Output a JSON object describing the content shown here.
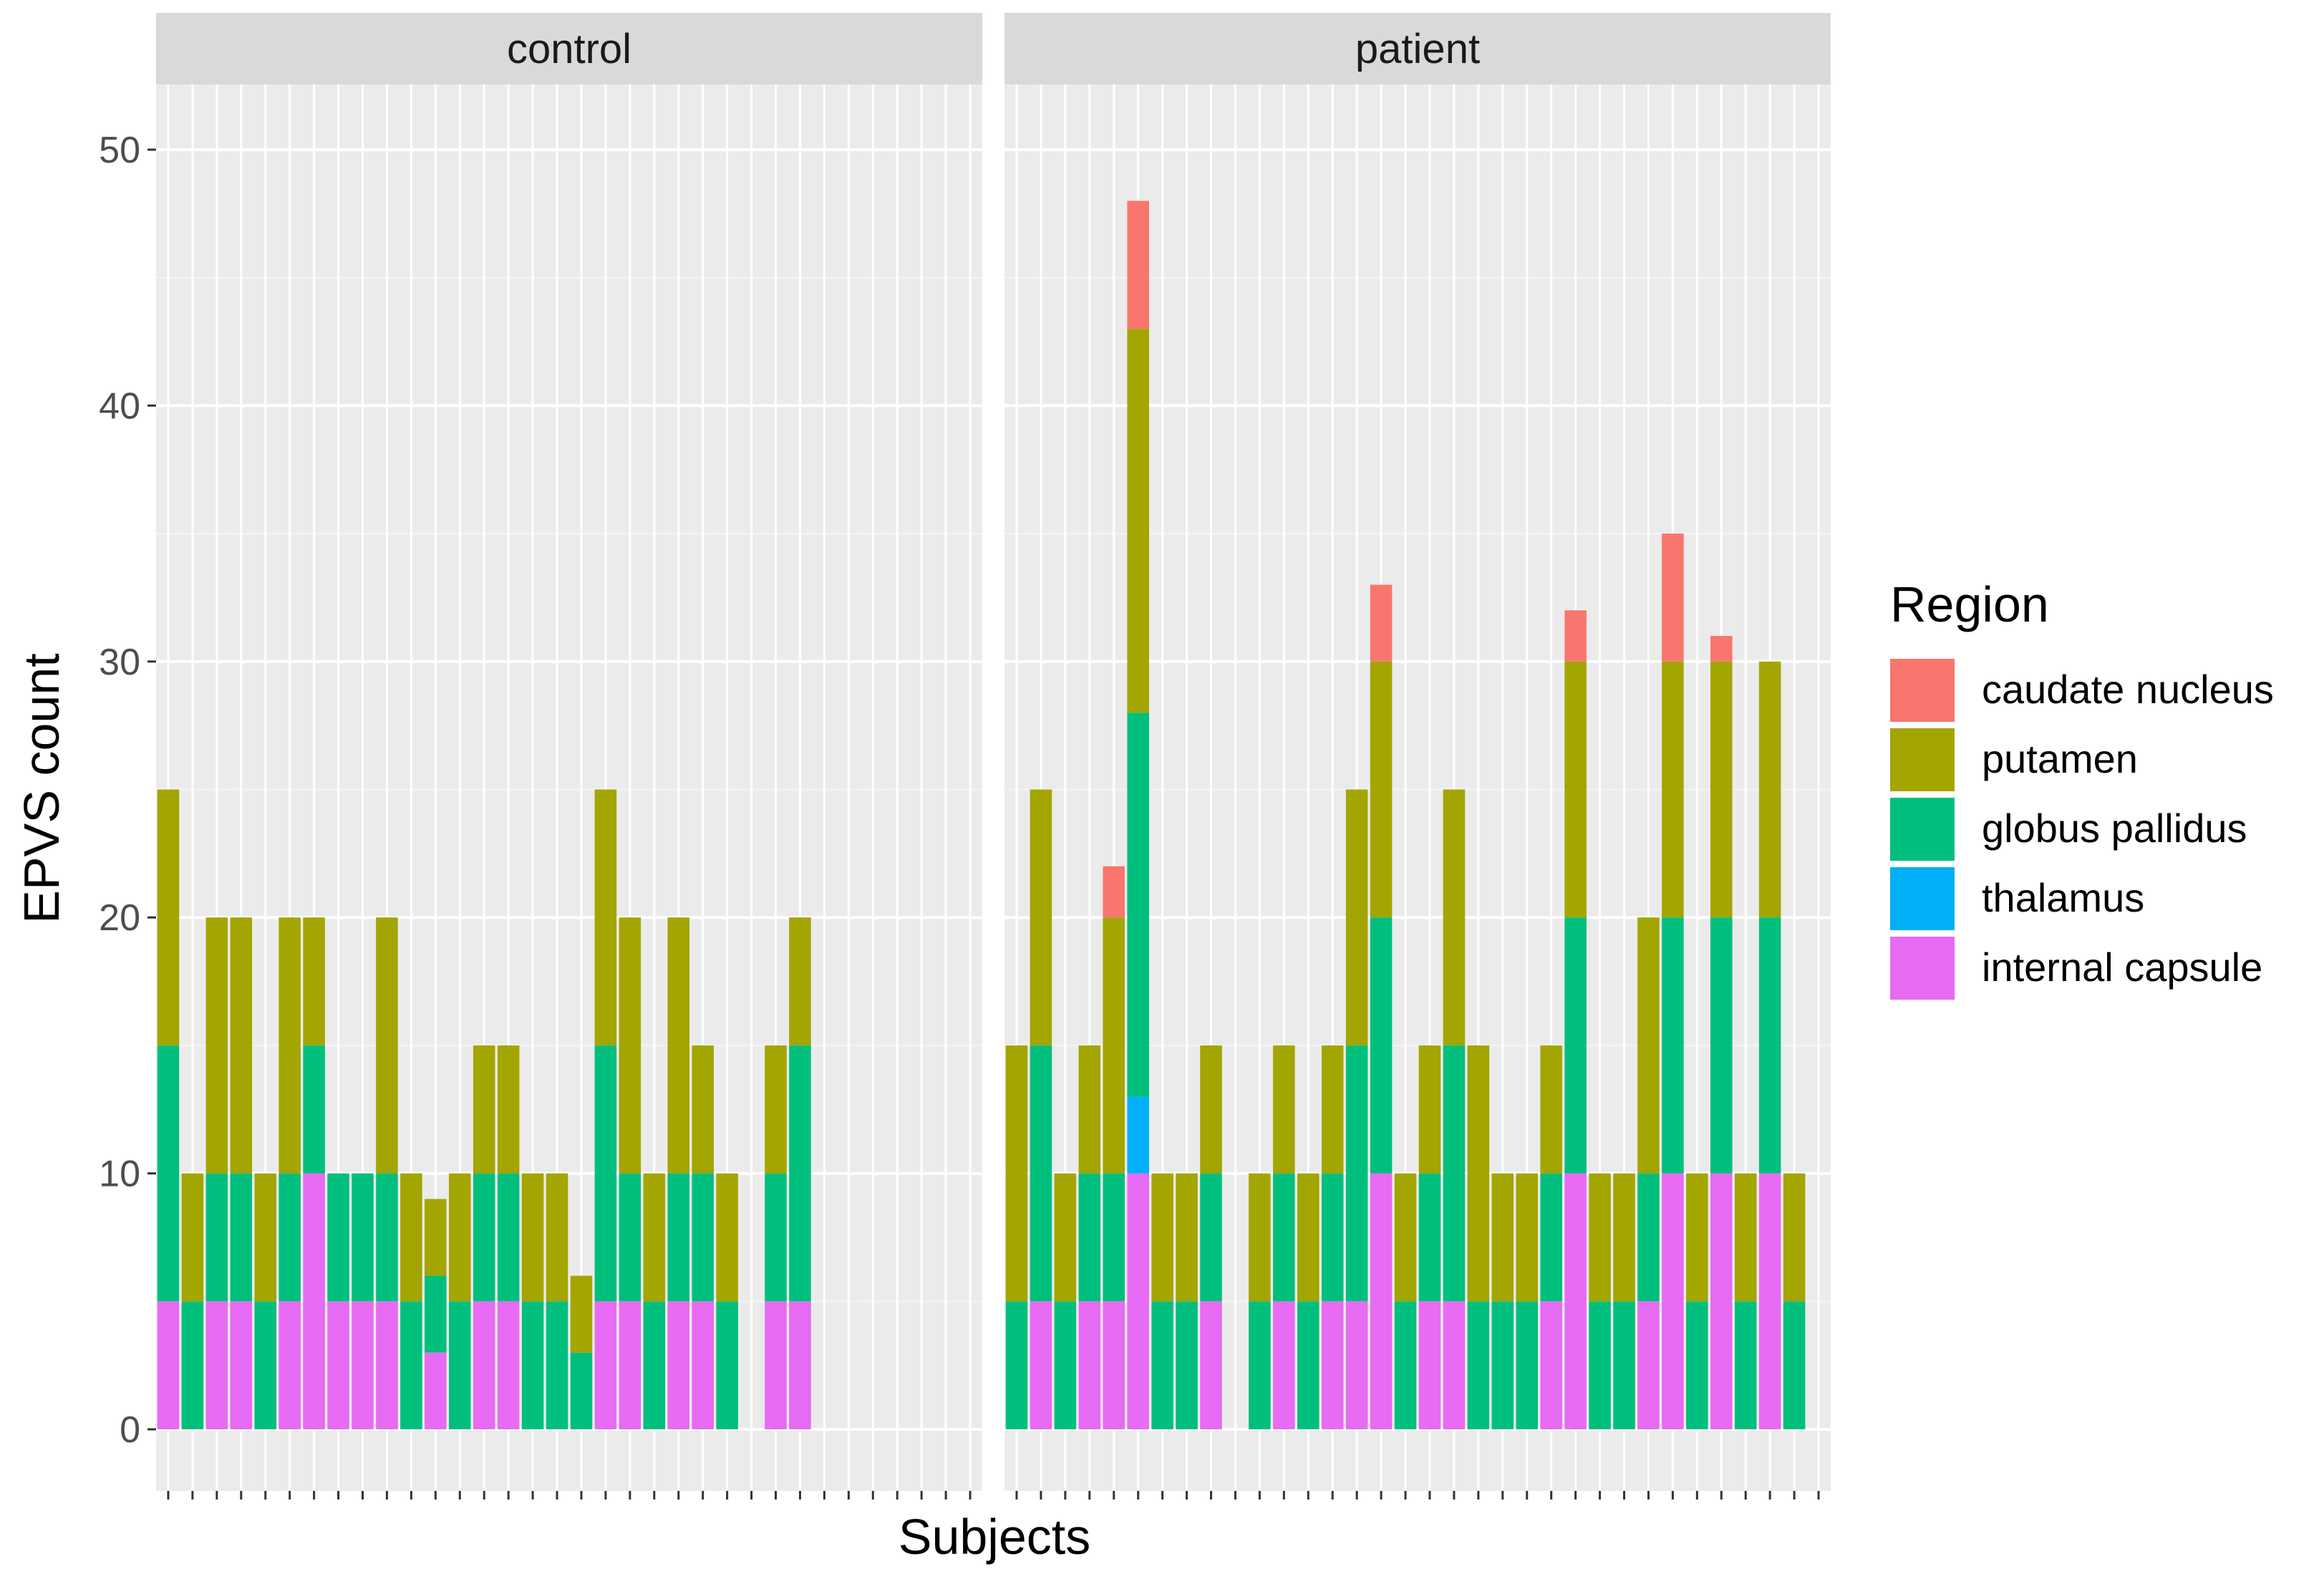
{
  "chart_data": {
    "type": "bar",
    "stacked": true,
    "xlabel": "Subjects",
    "ylabel": "EPVS count",
    "ylim": [
      0,
      53
    ],
    "yticks": [
      0,
      10,
      20,
      30,
      40,
      50
    ],
    "grid": true,
    "legend": {
      "title": "Region",
      "placement": "right",
      "entries": [
        "caudate nucleus",
        "putamen",
        "globus pallidus",
        "thalamus",
        "internal capsule"
      ]
    },
    "region_colors": {
      "caudate nucleus": "#F8766D",
      "putamen": "#A3A500",
      "globus pallidus": "#00BF7D",
      "thalamus": "#00B0F6",
      "internal capsule": "#E76BF3"
    },
    "stack_order_bottom_to_top": [
      "internal capsule",
      "thalamus",
      "globus pallidus",
      "putamen",
      "caudate nucleus"
    ],
    "panels": [
      {
        "name": "control",
        "slots": 34,
        "subjects": [
          {
            "internal capsule": 5,
            "globus pallidus": 10,
            "putamen": 10
          },
          {
            "globus pallidus": 5,
            "putamen": 5
          },
          {
            "internal capsule": 5,
            "globus pallidus": 5,
            "putamen": 10
          },
          {
            "internal capsule": 5,
            "globus pallidus": 5,
            "putamen": 10
          },
          {
            "globus pallidus": 5,
            "putamen": 5
          },
          {
            "internal capsule": 5,
            "globus pallidus": 5,
            "putamen": 10
          },
          {
            "internal capsule": 10,
            "globus pallidus": 5,
            "putamen": 5
          },
          {
            "internal capsule": 5,
            "globus pallidus": 5
          },
          {
            "internal capsule": 5,
            "globus pallidus": 5
          },
          {
            "internal capsule": 5,
            "globus pallidus": 5,
            "putamen": 10
          },
          {
            "globus pallidus": 5,
            "putamen": 5
          },
          {
            "internal capsule": 3,
            "globus pallidus": 3,
            "putamen": 3
          },
          {
            "globus pallidus": 5,
            "putamen": 5
          },
          {
            "internal capsule": 5,
            "globus pallidus": 5,
            "putamen": 5
          },
          {
            "internal capsule": 5,
            "globus pallidus": 5,
            "putamen": 5
          },
          {
            "globus pallidus": 5,
            "putamen": 5
          },
          {
            "globus pallidus": 5,
            "putamen": 5
          },
          {
            "globus pallidus": 3,
            "putamen": 3
          },
          {
            "internal capsule": 5,
            "globus pallidus": 10,
            "putamen": 10
          },
          {
            "internal capsule": 5,
            "globus pallidus": 5,
            "putamen": 10
          },
          {
            "globus pallidus": 5,
            "putamen": 5
          },
          {
            "internal capsule": 5,
            "globus pallidus": 5,
            "putamen": 10
          },
          {
            "internal capsule": 5,
            "globus pallidus": 5,
            "putamen": 5
          },
          {
            "globus pallidus": 5,
            "putamen": 5
          },
          {},
          {
            "internal capsule": 5,
            "globus pallidus": 5,
            "putamen": 5
          },
          {
            "internal capsule": 5,
            "globus pallidus": 10,
            "putamen": 5
          }
        ]
      },
      {
        "name": "patient",
        "slots": 34,
        "subjects": [
          {
            "globus pallidus": 5,
            "putamen": 10
          },
          {
            "internal capsule": 5,
            "globus pallidus": 10,
            "putamen": 10
          },
          {
            "globus pallidus": 5,
            "putamen": 5
          },
          {
            "internal capsule": 5,
            "globus pallidus": 5,
            "putamen": 5
          },
          {
            "internal capsule": 5,
            "globus pallidus": 5,
            "putamen": 10,
            "caudate nucleus": 2
          },
          {
            "internal capsule": 10,
            "thalamus": 3,
            "globus pallidus": 15,
            "putamen": 15,
            "caudate nucleus": 5
          },
          {
            "globus pallidus": 5,
            "putamen": 5
          },
          {
            "globus pallidus": 5,
            "putamen": 5
          },
          {
            "internal capsule": 5,
            "globus pallidus": 5,
            "putamen": 5
          },
          {},
          {
            "globus pallidus": 5,
            "putamen": 5
          },
          {
            "internal capsule": 5,
            "globus pallidus": 5,
            "putamen": 5
          },
          {
            "globus pallidus": 5,
            "putamen": 5
          },
          {
            "internal capsule": 5,
            "globus pallidus": 5,
            "putamen": 5
          },
          {
            "internal capsule": 5,
            "globus pallidus": 10,
            "putamen": 10
          },
          {
            "internal capsule": 10,
            "globus pallidus": 10,
            "putamen": 10,
            "caudate nucleus": 3
          },
          {
            "globus pallidus": 5,
            "putamen": 5
          },
          {
            "internal capsule": 5,
            "globus pallidus": 5,
            "putamen": 5
          },
          {
            "internal capsule": 5,
            "globus pallidus": 10,
            "putamen": 10
          },
          {
            "globus pallidus": 5,
            "putamen": 10
          },
          {
            "globus pallidus": 5,
            "putamen": 5
          },
          {
            "globus pallidus": 5,
            "putamen": 5
          },
          {
            "internal capsule": 5,
            "globus pallidus": 5,
            "putamen": 5
          },
          {
            "internal capsule": 10,
            "globus pallidus": 10,
            "putamen": 10,
            "caudate nucleus": 2
          },
          {
            "globus pallidus": 5,
            "putamen": 5
          },
          {
            "globus pallidus": 5,
            "putamen": 5
          },
          {
            "internal capsule": 5,
            "globus pallidus": 5,
            "putamen": 10
          },
          {
            "internal capsule": 10,
            "globus pallidus": 10,
            "putamen": 10,
            "caudate nucleus": 5
          },
          {
            "globus pallidus": 5,
            "putamen": 5
          },
          {
            "internal capsule": 10,
            "globus pallidus": 10,
            "putamen": 10,
            "caudate nucleus": 1
          },
          {
            "globus pallidus": 5,
            "putamen": 5
          },
          {
            "internal capsule": 10,
            "globus pallidus": 10,
            "putamen": 10
          },
          {
            "globus pallidus": 5,
            "putamen": 5
          }
        ]
      }
    ]
  }
}
